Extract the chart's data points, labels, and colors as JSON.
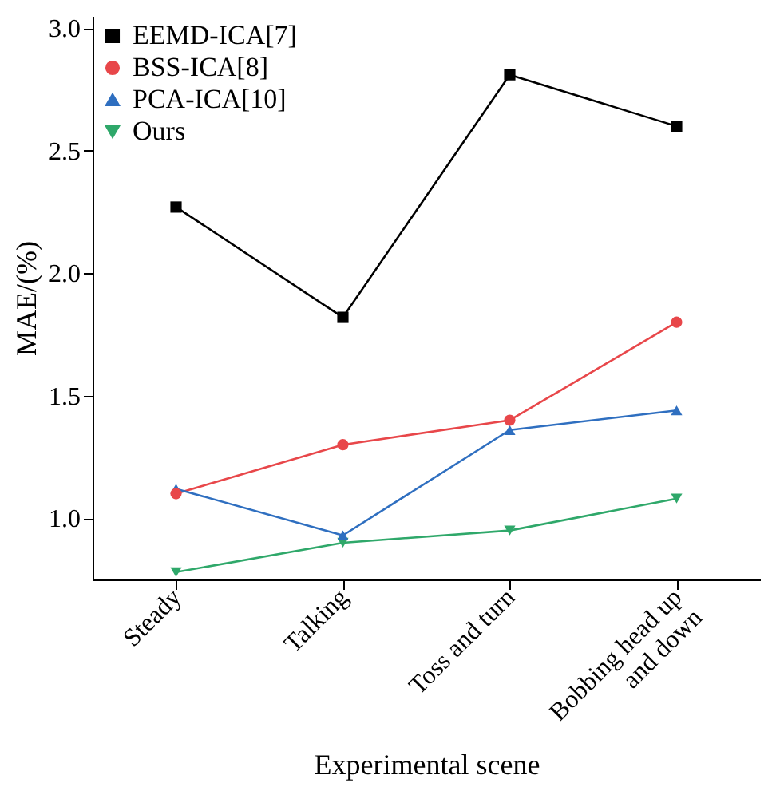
{
  "chart_data": {
    "type": "line",
    "xlabel": "Experimental scene",
    "ylabel": "MAE/(%)",
    "categories": [
      "Steady",
      "Talking",
      "Toss and turn",
      "Bobbing head up and down"
    ],
    "series": [
      {
        "name": "EEMD-ICA[7]",
        "color": "#000000",
        "marker": "square",
        "values": [
          2.27,
          1.82,
          2.81,
          2.6
        ]
      },
      {
        "name": "BSS-ICA[8]",
        "color": "#e8474a",
        "marker": "circle",
        "values": [
          1.1,
          1.3,
          1.4,
          1.8
        ]
      },
      {
        "name": "PCA-ICA[10]",
        "color": "#2f6fc0",
        "marker": "triangle",
        "values": [
          1.12,
          0.93,
          1.36,
          1.44
        ]
      },
      {
        "name": "Ours",
        "color": "#2fa86a",
        "marker": "triangle-down",
        "values": [
          0.78,
          0.9,
          0.95,
          1.08
        ]
      }
    ],
    "ylim": [
      0.75,
      3.05
    ],
    "yticks": [
      {
        "value": 1,
        "label": "1.0"
      },
      1.5,
      {
        "value": 2,
        "label": "2.0"
      },
      2.5,
      {
        "value": 3,
        "label": "3.0"
      }
    ],
    "grid": false,
    "legend": "top left",
    "line_style": "solid"
  }
}
